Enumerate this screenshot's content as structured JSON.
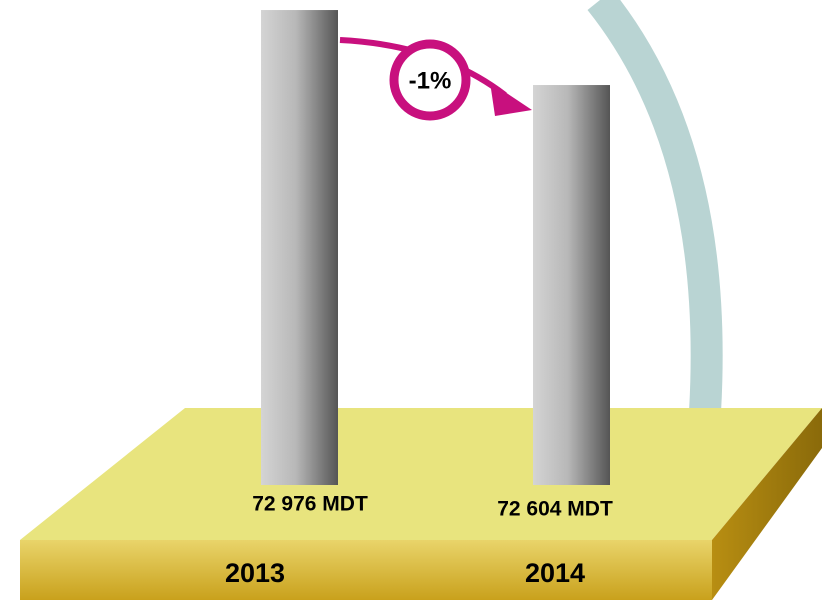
{
  "chart_data": {
    "type": "bar",
    "categories": [
      "2013",
      "2014"
    ],
    "values": [
      72976,
      72604
    ],
    "value_labels": [
      "72 976 MDT",
      "72 604 MDT"
    ],
    "annotation": "-1%",
    "ylim": [
      70620,
      73000
    ]
  }
}
